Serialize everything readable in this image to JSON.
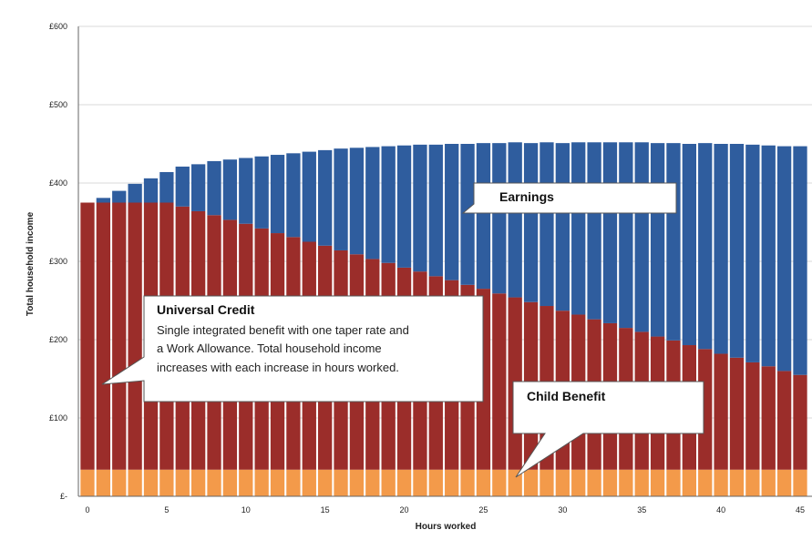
{
  "chart_data": {
    "type": "bar",
    "stacked": true,
    "title": "",
    "xlabel": "Hours worked",
    "ylabel": "Total household income",
    "ylim": [
      0,
      600
    ],
    "y_ticks": [
      "£-",
      "£100",
      "£200",
      "£300",
      "£400",
      "£500",
      "£600"
    ],
    "y_tick_values": [
      0,
      100,
      200,
      300,
      400,
      500,
      600
    ],
    "x_ticks": [
      0,
      5,
      10,
      15,
      20,
      25,
      30,
      35,
      40,
      45
    ],
    "x": [
      0,
      1,
      2,
      3,
      4,
      5,
      6,
      7,
      8,
      9,
      10,
      11,
      12,
      13,
      14,
      15,
      16,
      17,
      18,
      19,
      20,
      21,
      22,
      23,
      24,
      25,
      26,
      27,
      28,
      29,
      30,
      31,
      32,
      33,
      34,
      35,
      36,
      37,
      38,
      39,
      40,
      41,
      42,
      43,
      44,
      45
    ],
    "series": [
      {
        "name": "Child Benefit",
        "color": "#f39a4a",
        "values": [
          34,
          34,
          34,
          34,
          34,
          34,
          34,
          34,
          34,
          34,
          34,
          34,
          34,
          34,
          34,
          34,
          34,
          34,
          34,
          34,
          34,
          34,
          34,
          34,
          34,
          34,
          34,
          34,
          34,
          34,
          34,
          34,
          34,
          34,
          34,
          34,
          34,
          34,
          34,
          34,
          34,
          34,
          34,
          34,
          34,
          34
        ]
      },
      {
        "name": "Universal Credit",
        "color": "#9b2d2a",
        "values": [
          341,
          341,
          341,
          341,
          341,
          341,
          336,
          330,
          325,
          319,
          314,
          308,
          302,
          297,
          291,
          286,
          280,
          275,
          269,
          264,
          258,
          253,
          247,
          242,
          236,
          231,
          225,
          220,
          214,
          209,
          203,
          198,
          192,
          187,
          181,
          176,
          170,
          165,
          159,
          154,
          148,
          143,
          137,
          132,
          126,
          121
        ]
      },
      {
        "name": "Earnings",
        "color": "#2f5d9e",
        "values": [
          0,
          6,
          15,
          24,
          31,
          39,
          51,
          60,
          69,
          77,
          84,
          92,
          100,
          107,
          115,
          122,
          130,
          136,
          143,
          149,
          156,
          162,
          168,
          174,
          180,
          186,
          192,
          198,
          203,
          209,
          214,
          220,
          226,
          231,
          237,
          242,
          247,
          252,
          257,
          263,
          268,
          273,
          278,
          282,
          287,
          292
        ]
      }
    ],
    "annotations": [
      {
        "title": "Earnings",
        "body": []
      },
      {
        "title": "Universal Credit",
        "body": [
          "Single integrated benefit with one taper rate and",
          "a Work Allowance. Total household income",
          "increases with each increase in hours worked."
        ]
      },
      {
        "title": "Child Benefit",
        "body": []
      }
    ],
    "legend": "none",
    "grid": true
  }
}
